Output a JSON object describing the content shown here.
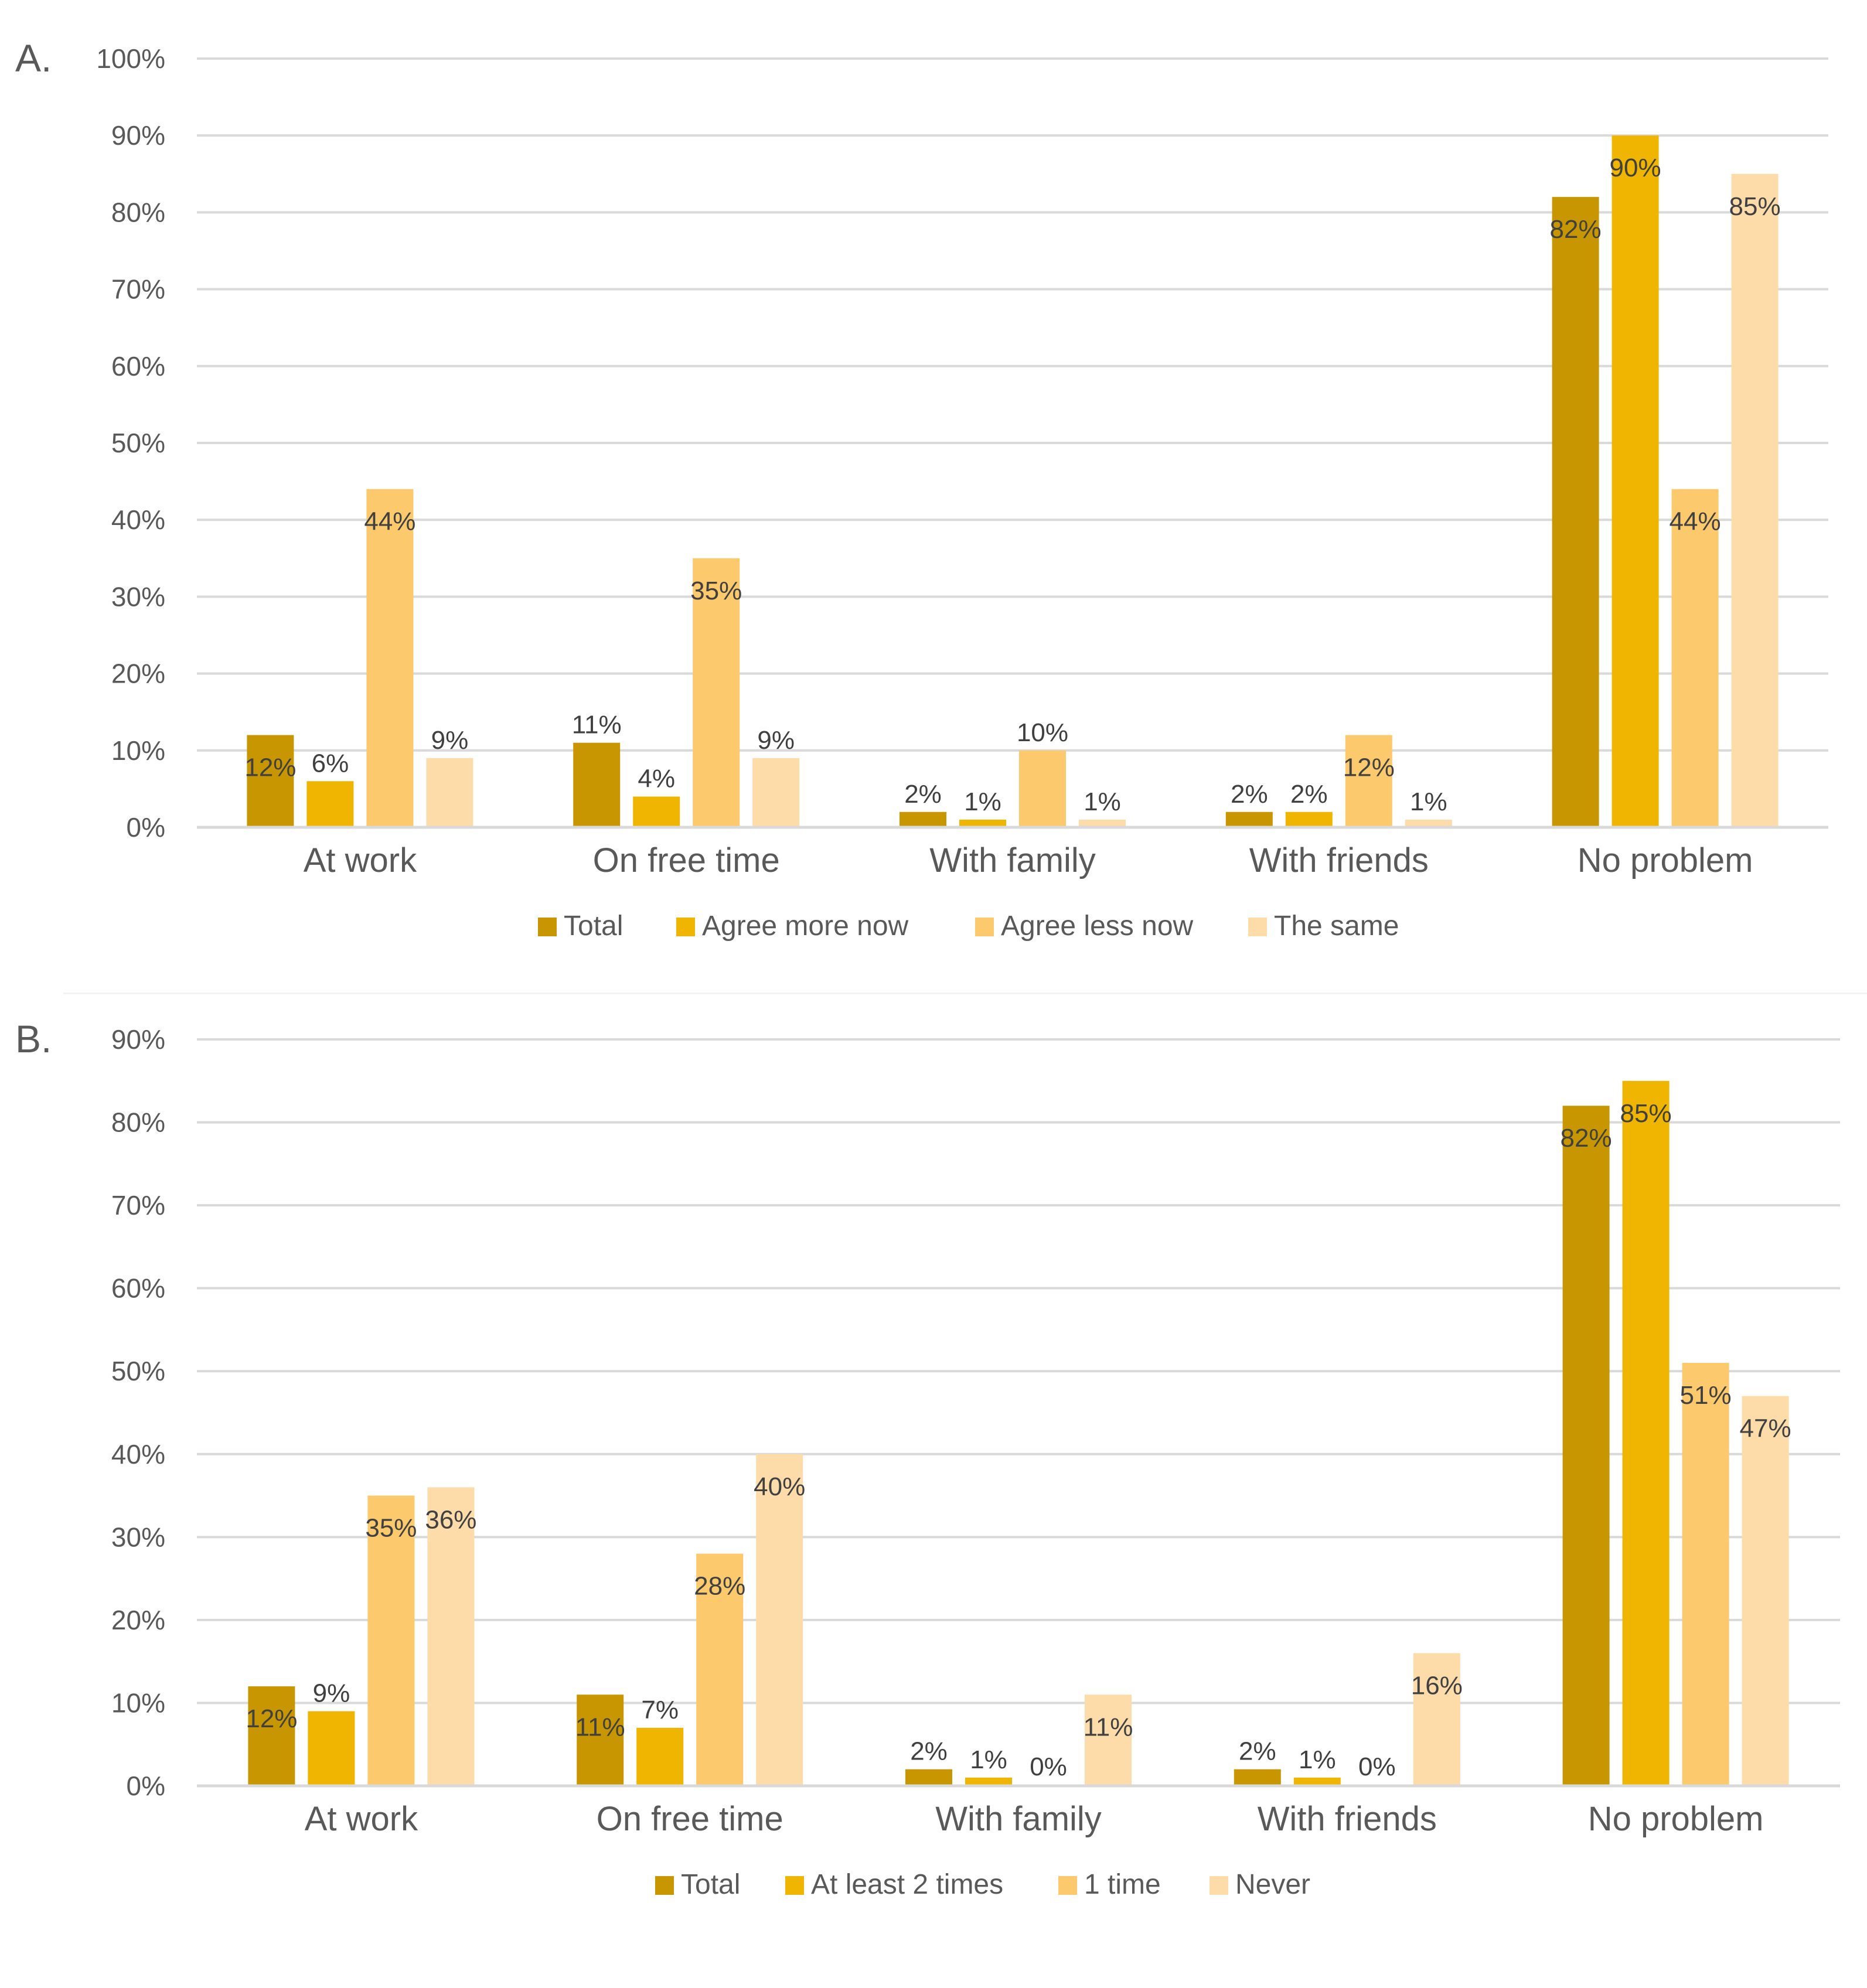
{
  "chart_data": [
    {
      "type": "bar",
      "panel_label": "A.",
      "categories": [
        "At work",
        "On free time",
        "With family",
        "With friends",
        "No problem"
      ],
      "series": [
        {
          "name": "Total",
          "color": "#c89600",
          "values": [
            12,
            11,
            2,
            2,
            82
          ],
          "labels": [
            "12%",
            "11%",
            "2%",
            "2%",
            "82%"
          ]
        },
        {
          "name": "Agree more now",
          "color": "#efb500",
          "values": [
            6,
            4,
            1,
            2,
            90
          ],
          "labels": [
            "6%",
            "4%",
            "1%",
            "2%",
            "90%"
          ]
        },
        {
          "name": "Agree less now",
          "color": "#fcc96c",
          "values": [
            44,
            35,
            10,
            12,
            44
          ],
          "labels": [
            "44%",
            "35%",
            "10%",
            "12%",
            "44%"
          ]
        },
        {
          "name": "The same",
          "color": "#fddcaa",
          "values": [
            9,
            9,
            1,
            1,
            85
          ],
          "labels": [
            "9%",
            "9%",
            "1%",
            "1%",
            "85%"
          ]
        }
      ],
      "ylim": [
        0,
        100
      ],
      "yticks": [
        "0%",
        "10%",
        "20%",
        "30%",
        "40%",
        "50%",
        "60%",
        "70%",
        "80%",
        "90%",
        "100%"
      ],
      "grid": true,
      "legend_position": "bottom-center"
    },
    {
      "type": "bar",
      "panel_label": "B.",
      "categories": [
        "At work",
        "On free time",
        "With family",
        "With friends",
        "No problem"
      ],
      "series": [
        {
          "name": "Total",
          "color": "#c89600",
          "values": [
            12,
            11,
            2,
            2,
            82
          ],
          "labels": [
            "12%",
            "11%",
            "2%",
            "2%",
            "82%"
          ]
        },
        {
          "name": "At least 2 times",
          "color": "#efb500",
          "values": [
            9,
            7,
            1,
            1,
            85
          ],
          "labels": [
            "9%",
            "7%",
            "1%",
            "1%",
            "85%"
          ]
        },
        {
          "name": "1 time",
          "color": "#fcc96c",
          "values": [
            35,
            28,
            0,
            0,
            51
          ],
          "labels": [
            "35%",
            "28%",
            "0%",
            "0%",
            "51%"
          ]
        },
        {
          "name": "Never",
          "color": "#fddcaa",
          "values": [
            36,
            40,
            11,
            16,
            47
          ],
          "labels": [
            "36%",
            "40%",
            "11%",
            "16%",
            "47%"
          ]
        }
      ],
      "ylim": [
        0,
        90
      ],
      "yticks": [
        "0%",
        "10%",
        "20%",
        "30%",
        "40%",
        "50%",
        "60%",
        "70%",
        "80%",
        "90%"
      ],
      "grid": true,
      "legend_position": "bottom-center"
    }
  ],
  "colors": {
    "axis_text": "#595959",
    "grid": "#d9d9d9",
    "label_text": "#404040"
  }
}
